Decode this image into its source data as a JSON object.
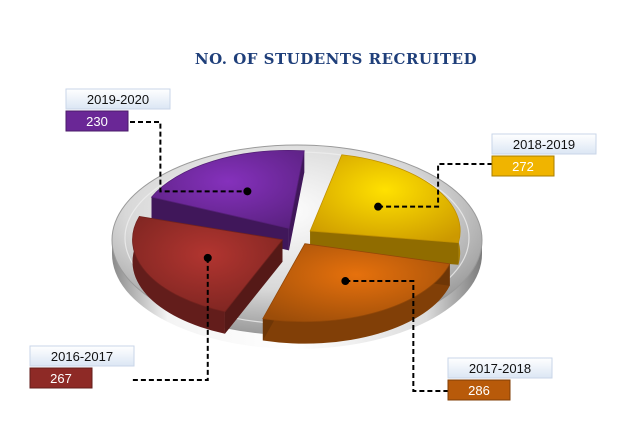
{
  "chart_data": {
    "type": "pie",
    "title": "NO. OF STUDENTS RECRUITED",
    "categories": [
      "2018-2019",
      "2017-2018",
      "2016-2017",
      "2019-2020"
    ],
    "values": [
      272,
      286,
      267,
      230
    ],
    "colors": [
      "#f0b400",
      "#b85a0a",
      "#8e2a26",
      "#6a2796"
    ],
    "style": "3d-exploded-pie-on-platter",
    "legend": "none",
    "data_labels": "callout boxes with leader lines"
  }
}
